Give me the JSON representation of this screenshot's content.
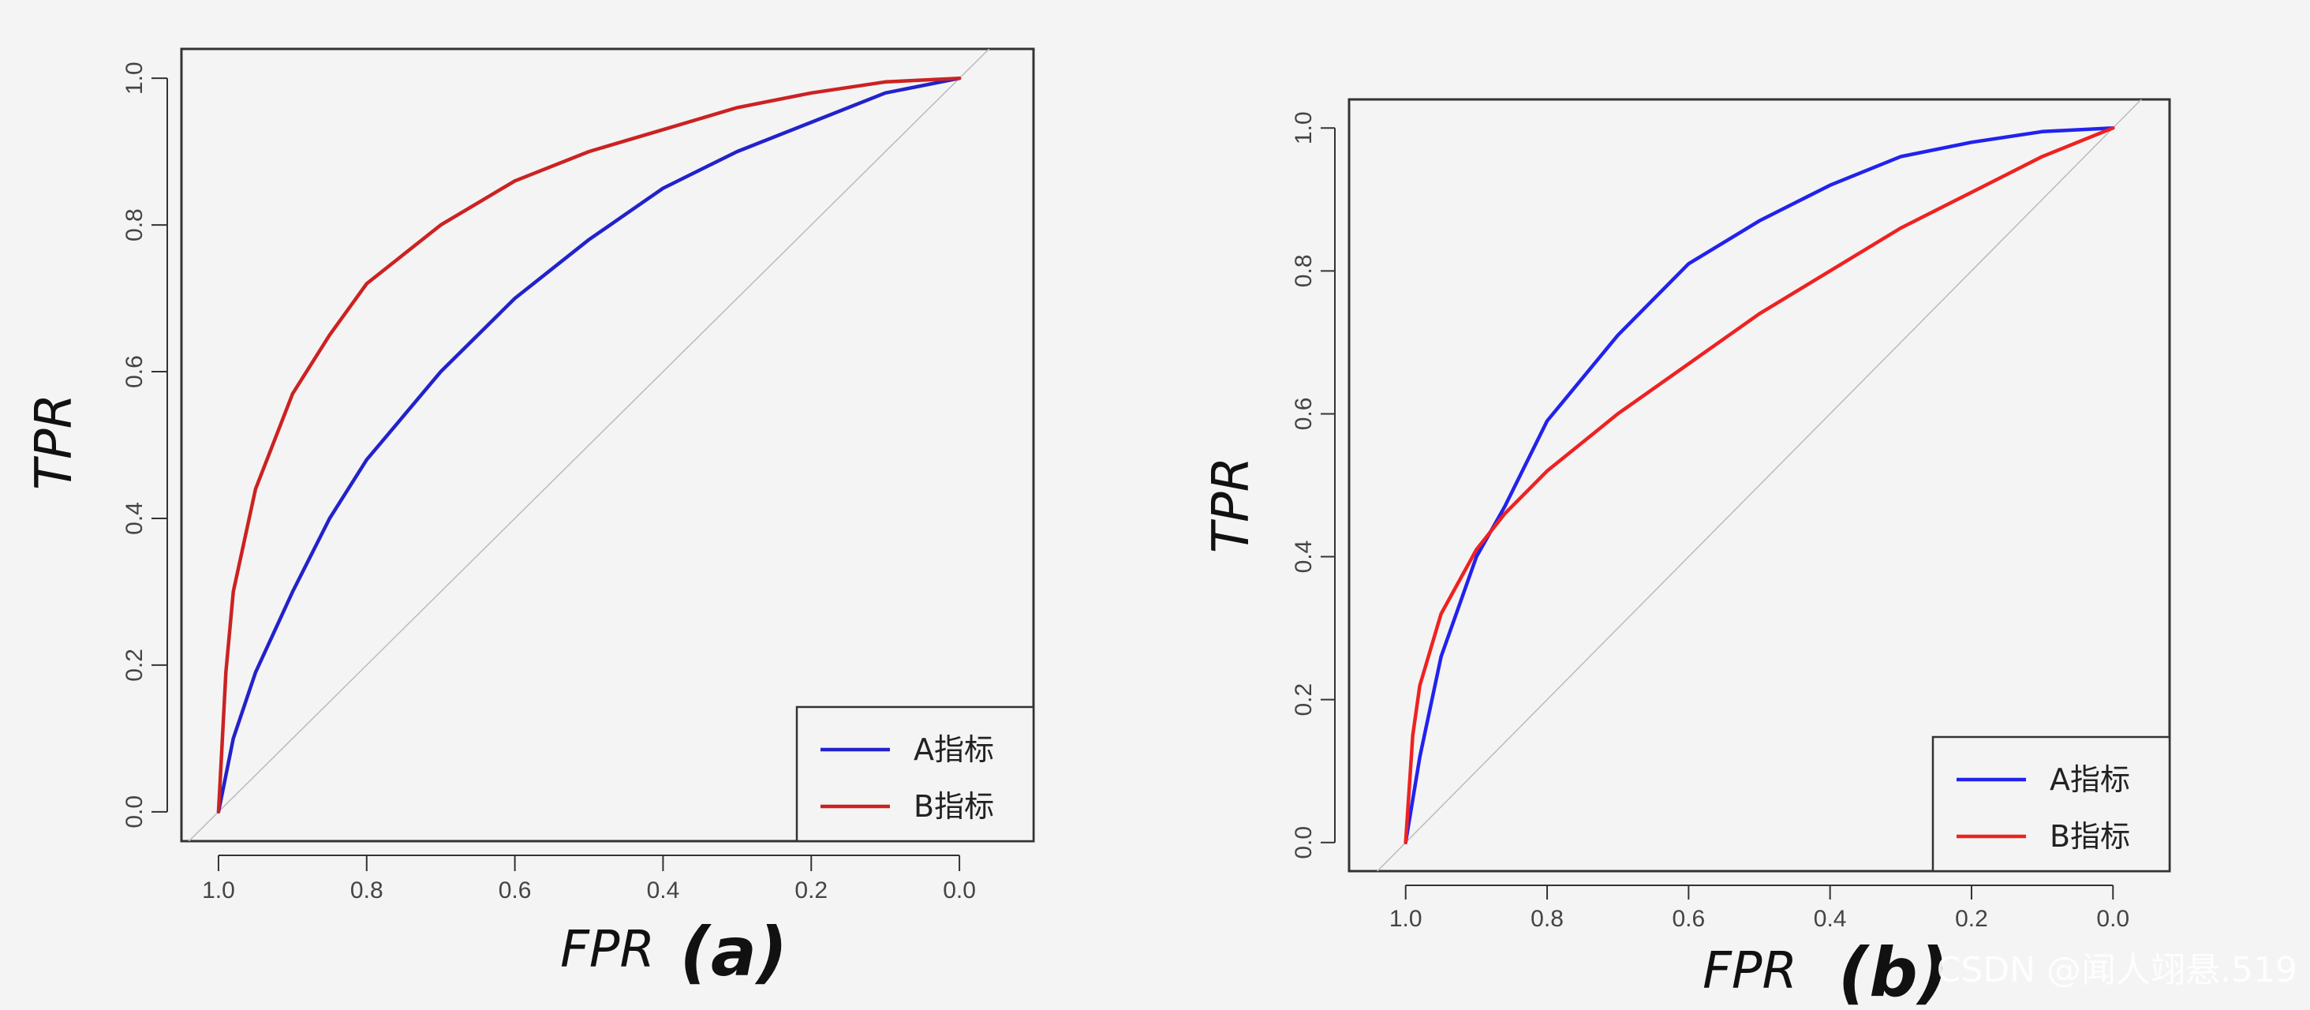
{
  "watermark": "CSDN @闻人翊悬.519",
  "chart_data": [
    {
      "type": "line",
      "panel_label": "(a)",
      "xlabel": "FPR",
      "ylabel": "TPR",
      "x_reversed": true,
      "xlim": [
        1.05,
        -0.1
      ],
      "ylim": [
        -0.04,
        1.04
      ],
      "x_ticks": [
        1.0,
        0.8,
        0.6,
        0.4,
        0.2,
        0.0
      ],
      "x_tick_labels": [
        "1.0",
        "0.8",
        "0.6",
        "0.4",
        "0.2",
        "0.0"
      ],
      "y_ticks": [
        0.0,
        0.2,
        0.4,
        0.6,
        0.8,
        1.0
      ],
      "y_tick_labels": [
        "0.0",
        "0.2",
        "0.4",
        "0.6",
        "0.8",
        "1.0"
      ],
      "reference_line": "diagonal",
      "legend_position": "bottom-right",
      "series": [
        {
          "name": "A指标",
          "color": "#2222cc",
          "x": [
            1.0,
            0.98,
            0.95,
            0.9,
            0.85,
            0.8,
            0.7,
            0.6,
            0.5,
            0.4,
            0.3,
            0.2,
            0.1,
            0.0
          ],
          "y": [
            0.0,
            0.1,
            0.19,
            0.3,
            0.4,
            0.48,
            0.6,
            0.7,
            0.78,
            0.85,
            0.9,
            0.94,
            0.98,
            1.0
          ]
        },
        {
          "name": "B指标",
          "color": "#cc2222",
          "x": [
            1.0,
            0.99,
            0.98,
            0.95,
            0.9,
            0.85,
            0.8,
            0.7,
            0.6,
            0.5,
            0.4,
            0.3,
            0.2,
            0.1,
            0.0
          ],
          "y": [
            0.0,
            0.19,
            0.3,
            0.44,
            0.57,
            0.65,
            0.72,
            0.8,
            0.86,
            0.9,
            0.93,
            0.96,
            0.98,
            0.995,
            1.0
          ]
        }
      ]
    },
    {
      "type": "line",
      "panel_label": "(b)",
      "xlabel": "FPR",
      "ylabel": "TPR",
      "x_reversed": true,
      "xlim": [
        1.08,
        -0.08
      ],
      "ylim": [
        -0.04,
        1.04
      ],
      "x_ticks": [
        1.0,
        0.8,
        0.6,
        0.4,
        0.2,
        0.0
      ],
      "x_tick_labels": [
        "1.0",
        "0.8",
        "0.6",
        "0.4",
        "0.2",
        "0.0"
      ],
      "y_ticks": [
        0.0,
        0.2,
        0.4,
        0.6,
        0.8,
        1.0
      ],
      "y_tick_labels": [
        "0.0",
        "0.2",
        "0.4",
        "0.6",
        "0.8",
        "1.0"
      ],
      "reference_line": "diagonal",
      "legend_position": "bottom-right",
      "series": [
        {
          "name": "A指标",
          "color": "#2222ee",
          "x": [
            1.0,
            0.98,
            0.95,
            0.9,
            0.86,
            0.8,
            0.7,
            0.6,
            0.5,
            0.4,
            0.3,
            0.2,
            0.1,
            0.0
          ],
          "y": [
            0.0,
            0.12,
            0.26,
            0.4,
            0.47,
            0.59,
            0.71,
            0.81,
            0.87,
            0.92,
            0.96,
            0.98,
            0.995,
            1.0
          ]
        },
        {
          "name": "B指标",
          "color": "#ee2222",
          "x": [
            1.0,
            0.99,
            0.98,
            0.95,
            0.9,
            0.86,
            0.8,
            0.7,
            0.6,
            0.5,
            0.4,
            0.3,
            0.2,
            0.1,
            0.0
          ],
          "y": [
            0.0,
            0.15,
            0.22,
            0.32,
            0.41,
            0.46,
            0.52,
            0.6,
            0.67,
            0.74,
            0.8,
            0.86,
            0.91,
            0.96,
            1.0
          ]
        }
      ]
    }
  ]
}
